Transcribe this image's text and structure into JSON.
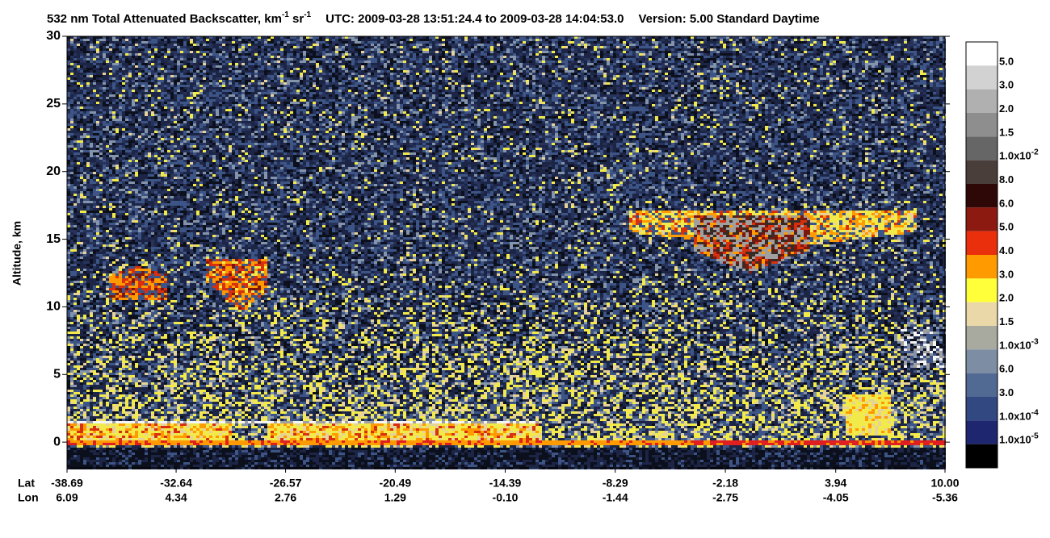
{
  "chart_data": {
    "type": "curtain",
    "title": {
      "main": "532 nm Total Attenuated Backscatter, km",
      "sup1": "-1",
      "unit2": " sr",
      "sup2": "-1",
      "utc": "UTC:  2009-03-28 13:51:24.4  to  2009-03-28 14:04:53.0",
      "version": "Version: 5.00  Standard  Daytime"
    },
    "ylabel": "Altitude, km",
    "ylim": [
      -1.9,
      30
    ],
    "yticks": [
      0,
      5,
      10,
      15,
      20,
      25,
      30
    ],
    "xlim": [
      -38.69,
      10
    ],
    "x_row_labels": [
      "Lat",
      "Lon"
    ],
    "xticks": [
      -38.69,
      -32.64,
      -26.57,
      -20.49,
      -14.39,
      -8.29,
      -2.18,
      3.94,
      {
        "value": 10,
        "label": "10.00"
      }
    ],
    "lon_labels": [
      "6.09",
      "4.34",
      "2.76",
      "1.29",
      "-0.10",
      "-1.44",
      "-2.75",
      "-4.05",
      "-5.36"
    ],
    "colorbar": {
      "colors": [
        "#ffffff",
        "#d2d2d2",
        "#b0b0b0",
        "#8e8e8e",
        "#666666",
        "#4a3e3a",
        "#2e0806",
        "#8c1a10",
        "#ea2f0c",
        "#ff9a00",
        "#ffff3a",
        "#ead8a8",
        "#a8aaa0",
        "#7d8ea4",
        "#506a94",
        "#314880",
        "#1e2670",
        "#000000"
      ],
      "labels": [
        {
          "text": "5.0"
        },
        {
          "text": "3.0"
        },
        {
          "text": "2.0"
        },
        {
          "text": "1.5"
        },
        {
          "text": "1.0x10",
          "sup": "-2"
        },
        {
          "text": "8.0"
        },
        {
          "text": "6.0"
        },
        {
          "text": "5.0"
        },
        {
          "text": "4.0"
        },
        {
          "text": "3.0"
        },
        {
          "text": "2.0"
        },
        {
          "text": "1.5"
        },
        {
          "text": "1.0x10",
          "sup": "-3"
        },
        {
          "text": "6.0"
        },
        {
          "text": "3.0"
        },
        {
          "text": "1.0x10",
          "sup": "-4"
        },
        {
          "text": "1.0x10",
          "sup": "-5"
        }
      ]
    }
  }
}
